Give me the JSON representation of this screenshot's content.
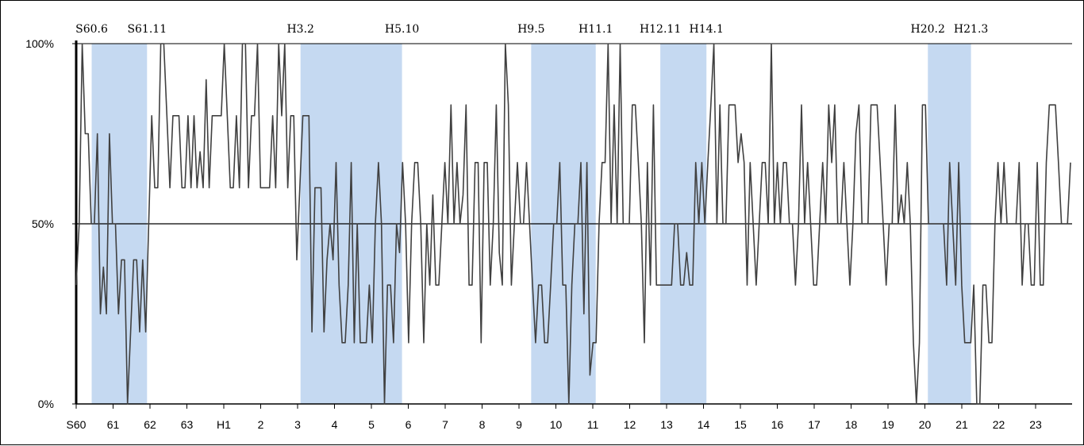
{
  "chart_data": {
    "type": "line",
    "title": "",
    "xlabel": "",
    "ylabel": "",
    "ylim": [
      0,
      100
    ],
    "y_ticks": [
      "0%",
      "50%",
      "100%"
    ],
    "x_ticks": [
      {
        "pos": 0,
        "label": "S60"
      },
      {
        "pos": 1,
        "label": "61"
      },
      {
        "pos": 2,
        "label": "62"
      },
      {
        "pos": 3,
        "label": "63"
      },
      {
        "pos": 4,
        "label": "H1"
      },
      {
        "pos": 5,
        "label": "2"
      },
      {
        "pos": 6,
        "label": "3"
      },
      {
        "pos": 7,
        "label": "4"
      },
      {
        "pos": 8,
        "label": "5"
      },
      {
        "pos": 9,
        "label": "6"
      },
      {
        "pos": 10,
        "label": "7"
      },
      {
        "pos": 11,
        "label": "8"
      },
      {
        "pos": 12,
        "label": "9"
      },
      {
        "pos": 13,
        "label": "10"
      },
      {
        "pos": 14,
        "label": "11"
      },
      {
        "pos": 15,
        "label": "12"
      },
      {
        "pos": 16,
        "label": "13"
      },
      {
        "pos": 17,
        "label": "14"
      },
      {
        "pos": 18,
        "label": "15"
      },
      {
        "pos": 19,
        "label": "16"
      },
      {
        "pos": 20,
        "label": "17"
      },
      {
        "pos": 21,
        "label": "18"
      },
      {
        "pos": 22,
        "label": "19"
      },
      {
        "pos": 23,
        "label": "20"
      },
      {
        "pos": 24,
        "label": "21"
      },
      {
        "pos": 25,
        "label": "22"
      },
      {
        "pos": 26,
        "label": "23"
      }
    ],
    "shaded_periods": [
      {
        "start": 0.42,
        "end": 1.92,
        "start_label": "S60.6",
        "end_label": "S61.11"
      },
      {
        "start": 6.08,
        "end": 8.83,
        "start_label": "H3.2",
        "end_label": "H5.10"
      },
      {
        "start": 12.33,
        "end": 14.08,
        "start_label": "H9.5",
        "end_label": "H11.1"
      },
      {
        "start": 15.83,
        "end": 17.08,
        "start_label": "H12.11",
        "end_label": "H14.1"
      },
      {
        "start": 23.08,
        "end": 24.25,
        "start_label": "H20.2",
        "end_label": "H21.3"
      }
    ],
    "reference_line": 50,
    "colors": {
      "line": "#404040",
      "shade": "#c5d9f1",
      "axis": "#000000",
      "reference": "#000000"
    },
    "series": [
      {
        "values": [
          33,
          50,
          100,
          75,
          75,
          50,
          50,
          75,
          25,
          38,
          25,
          75,
          50,
          50,
          25,
          40,
          40,
          0,
          20,
          40,
          40,
          20,
          40,
          20,
          50,
          80,
          60,
          60,
          100,
          100,
          80,
          60,
          80,
          80,
          80,
          60,
          60,
          80,
          60,
          80,
          60,
          70,
          60,
          90,
          60,
          80,
          80,
          80,
          80,
          100,
          80,
          60,
          60,
          80,
          60,
          100,
          100,
          60,
          80,
          80,
          100,
          60,
          60,
          60,
          60,
          80,
          60,
          100,
          80,
          100,
          60,
          80,
          80,
          40,
          60,
          80,
          80,
          80,
          20,
          60,
          60,
          60,
          20,
          40,
          50,
          40,
          67,
          33,
          17,
          17,
          33,
          67,
          17,
          50,
          17,
          17,
          17,
          33,
          17,
          50,
          67,
          50,
          0,
          33,
          33,
          17,
          50,
          42,
          67,
          50,
          17,
          50,
          67,
          67,
          50,
          17,
          50,
          33,
          58,
          33,
          33,
          50,
          67,
          50,
          83,
          50,
          67,
          50,
          58,
          83,
          33,
          33,
          67,
          67,
          17,
          67,
          67,
          33,
          50,
          83,
          42,
          33,
          100,
          83,
          33,
          50,
          67,
          50,
          50,
          67,
          50,
          33,
          17,
          33,
          33,
          17,
          17,
          33,
          50,
          50,
          67,
          33,
          33,
          0,
          33,
          50,
          50,
          67,
          25,
          67,
          8,
          17,
          17,
          50,
          67,
          67,
          100,
          50,
          83,
          50,
          100,
          50,
          50,
          50,
          83,
          83,
          67,
          50,
          17,
          67,
          33,
          83,
          33,
          33,
          33,
          33,
          33,
          33,
          50,
          50,
          33,
          33,
          42,
          33,
          33,
          67,
          50,
          67,
          50,
          67,
          83,
          100,
          50,
          83,
          50,
          50,
          83,
          83,
          83,
          67,
          75,
          67,
          33,
          67,
          50,
          33,
          50,
          67,
          67,
          50,
          100,
          50,
          67,
          50,
          67,
          67,
          50,
          50,
          33,
          50,
          83,
          50,
          67,
          50,
          33,
          33,
          50,
          67,
          50,
          83,
          67,
          83,
          50,
          50,
          67,
          50,
          33,
          50,
          75,
          83,
          50,
          50,
          50,
          83,
          83,
          83,
          67,
          50,
          33,
          50,
          50,
          83,
          50,
          58,
          50,
          67,
          50,
          17,
          0,
          17,
          83,
          83,
          50,
          50,
          50,
          50,
          50,
          50,
          33,
          67,
          50,
          33,
          67,
          33,
          17,
          17,
          17,
          33,
          0,
          0,
          33,
          33,
          17,
          17,
          50,
          67,
          50,
          67,
          50,
          50,
          50,
          50,
          67,
          33,
          50,
          50,
          33,
          33,
          67,
          33,
          33,
          67,
          83,
          83,
          83,
          67,
          50,
          50,
          50,
          67
        ]
      }
    ]
  }
}
